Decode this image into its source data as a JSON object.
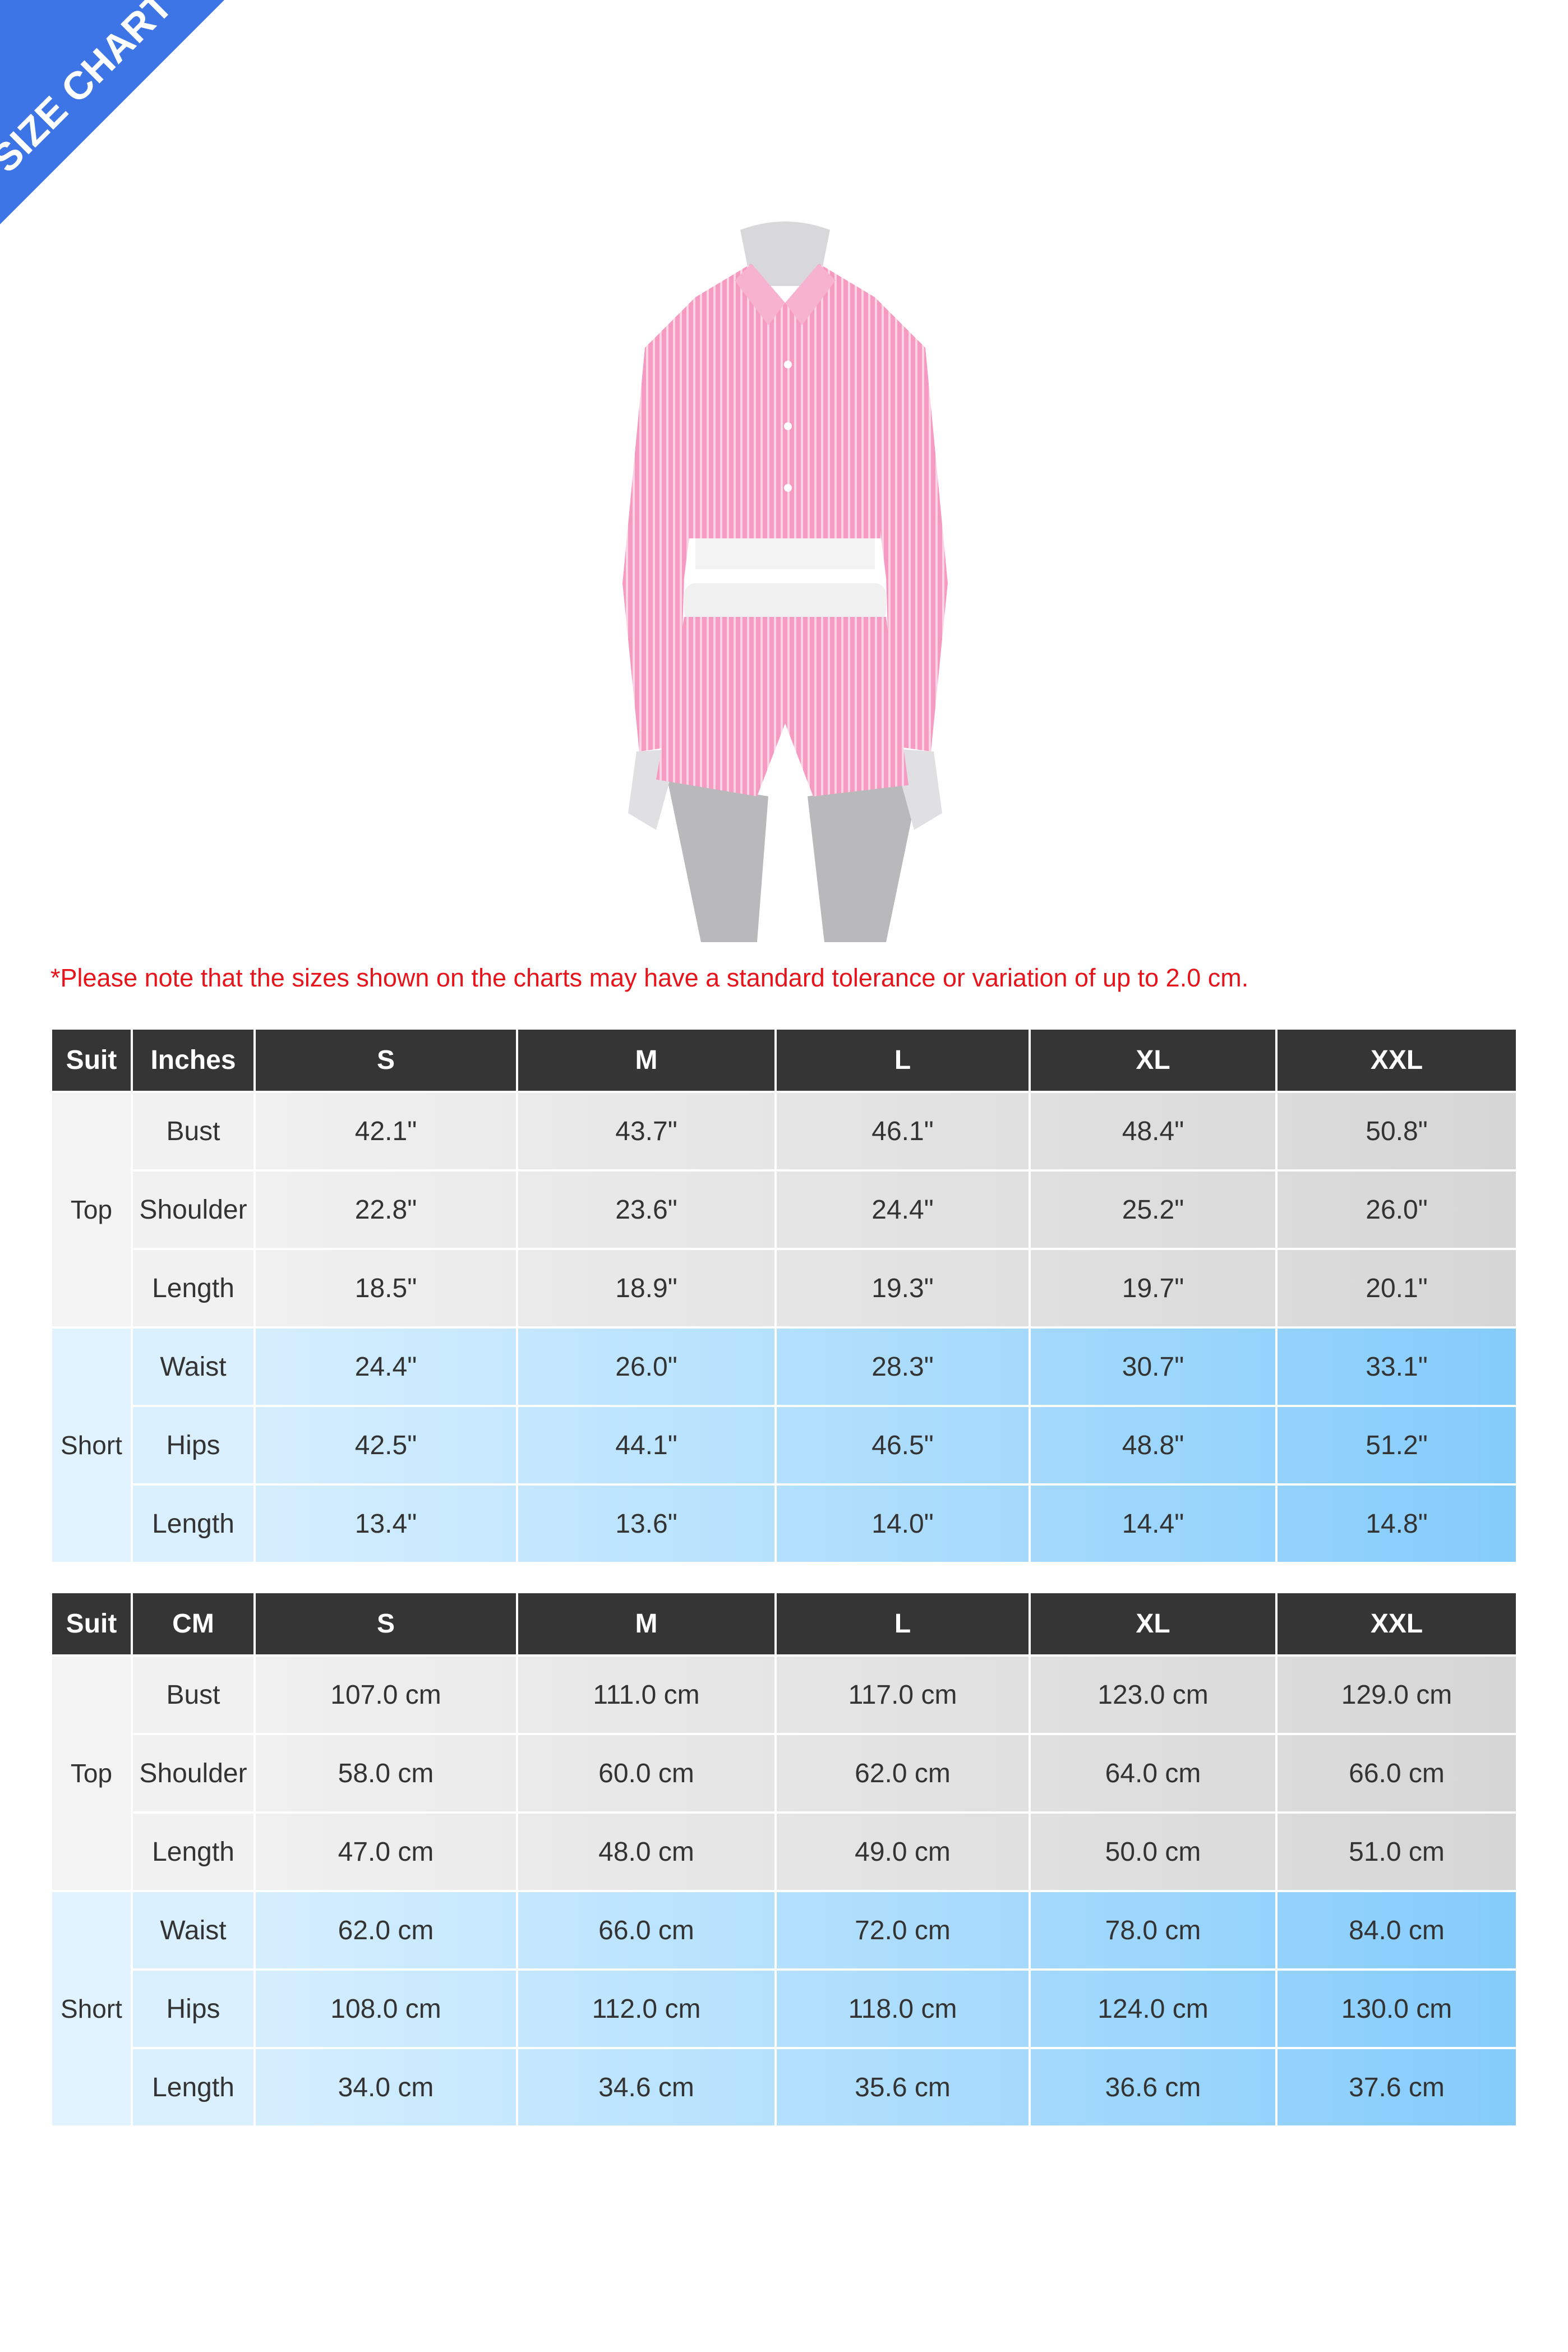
{
  "banner": {
    "label": "SIZE CHART",
    "color": "#3d75e6"
  },
  "product_image": {
    "description_icon": "pink-striped-shirt-and-shorts-set"
  },
  "note": "*Please note that the sizes shown on the charts may have a standard tolerance or variation of up to 2.0 cm.",
  "colors": {
    "header": "#353535",
    "note": "#e8141b",
    "top_start": "#f4f4f4",
    "top_end": "#d6d6d6",
    "short_start": "#e3f4ff",
    "short_end": "#85ccfb"
  },
  "tables": [
    {
      "headers": [
        "Suit",
        "Inches",
        "S",
        "M",
        "L",
        "XL",
        "XXL"
      ],
      "groups": [
        {
          "name": "Top",
          "rows": [
            {
              "label": "Bust",
              "values": [
                "42.1\"",
                "43.7\"",
                "46.1\"",
                "48.4\"",
                "50.8\""
              ]
            },
            {
              "label": "Shoulder",
              "values": [
                "22.8\"",
                "23.6\"",
                "24.4\"",
                "25.2\"",
                "26.0\""
              ]
            },
            {
              "label": "Length",
              "values": [
                "18.5\"",
                "18.9\"",
                "19.3\"",
                "19.7\"",
                "20.1\""
              ]
            }
          ]
        },
        {
          "name": "Short",
          "rows": [
            {
              "label": "Waist",
              "values": [
                "24.4\"",
                "26.0\"",
                "28.3\"",
                "30.7\"",
                "33.1\""
              ]
            },
            {
              "label": "Hips",
              "values": [
                "42.5\"",
                "44.1\"",
                "46.5\"",
                "48.8\"",
                "51.2\""
              ]
            },
            {
              "label": "Length",
              "values": [
                "13.4\"",
                "13.6\"",
                "14.0\"",
                "14.4\"",
                "14.8\""
              ]
            }
          ]
        }
      ]
    },
    {
      "headers": [
        "Suit",
        "CM",
        "S",
        "M",
        "L",
        "XL",
        "XXL"
      ],
      "groups": [
        {
          "name": "Top",
          "rows": [
            {
              "label": "Bust",
              "values": [
                "107.0 cm",
                "111.0 cm",
                "117.0 cm",
                "123.0 cm",
                "129.0 cm"
              ]
            },
            {
              "label": "Shoulder",
              "values": [
                "58.0 cm",
                "60.0 cm",
                "62.0 cm",
                "64.0 cm",
                "66.0 cm"
              ]
            },
            {
              "label": "Length",
              "values": [
                "47.0 cm",
                "48.0 cm",
                "49.0 cm",
                "50.0 cm",
                "51.0 cm"
              ]
            }
          ]
        },
        {
          "name": "Short",
          "rows": [
            {
              "label": "Waist",
              "values": [
                "62.0 cm",
                "66.0 cm",
                "72.0 cm",
                "78.0 cm",
                "84.0 cm"
              ]
            },
            {
              "label": "Hips",
              "values": [
                "108.0 cm",
                "112.0 cm",
                "118.0 cm",
                "124.0 cm",
                "130.0 cm"
              ]
            },
            {
              "label": "Length",
              "values": [
                "34.0 cm",
                "34.6 cm",
                "35.6 cm",
                "36.6 cm",
                "37.6 cm"
              ]
            }
          ]
        }
      ]
    }
  ]
}
